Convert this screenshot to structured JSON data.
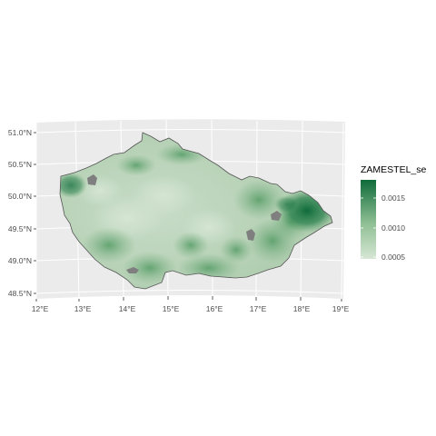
{
  "map": {
    "y_labels": [
      "51.0°N",
      "50.5°N",
      "50.0°N",
      "49.5°N",
      "49.0°N",
      "48.5°N"
    ],
    "x_labels": [
      "12°E",
      "13°E",
      "14°E",
      "15°E",
      "16°E",
      "17°E",
      "18°E",
      "19°E"
    ],
    "colors": {
      "panel": "#ebebeb",
      "grid": "#ffffff",
      "border": "#555555",
      "nodata": "#7f7f7f",
      "low": "#c9dcc8",
      "high": "#0f6b3a"
    }
  },
  "legend": {
    "title": "ZAMESTEL_se",
    "labels": [
      "0.0015",
      "0.0010",
      "0.0005"
    ],
    "range": [
      0.0005,
      0.0018
    ]
  }
}
